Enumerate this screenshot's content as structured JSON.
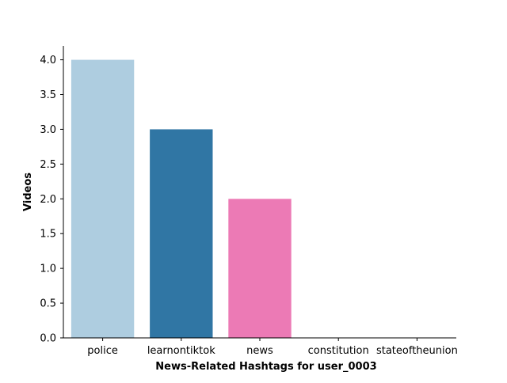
{
  "chart_data": {
    "type": "bar",
    "title": "",
    "xlabel": "News-Related Hashtags for user_0003",
    "ylabel": "Videos",
    "categories": [
      "police",
      "learnontiktok",
      "news",
      "constitution",
      "stateoftheunion"
    ],
    "values": [
      4,
      3,
      2,
      0,
      0
    ],
    "colors": [
      "#aecde0",
      "#3076a4",
      "#ec7ab5",
      "#aecde0",
      "#3076a4"
    ],
    "ylim": [
      0,
      4.2
    ],
    "yticks": [
      "0.0",
      "0.5",
      "1.0",
      "1.5",
      "2.0",
      "2.5",
      "3.0",
      "3.5",
      "4.0"
    ],
    "grid": false,
    "legend": "none"
  }
}
